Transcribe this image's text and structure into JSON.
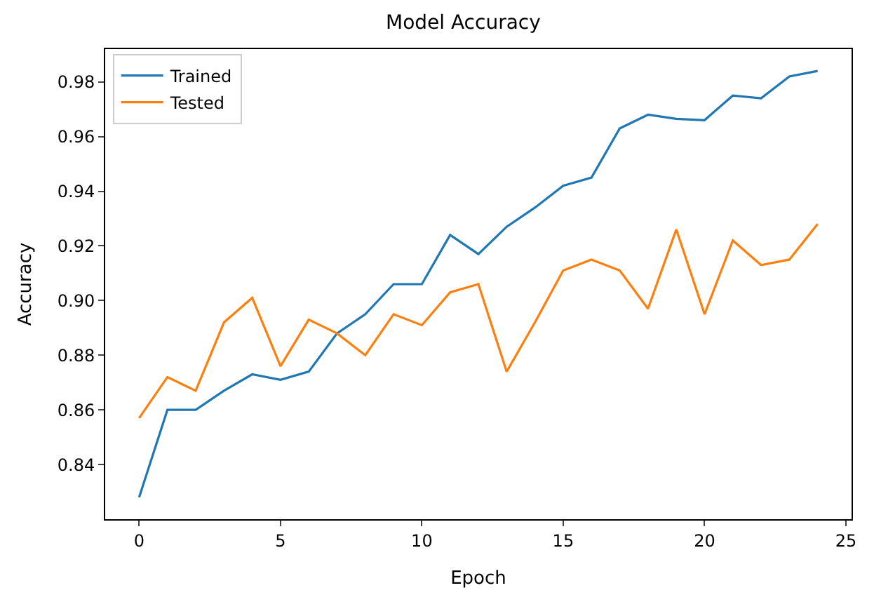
{
  "chart_data": {
    "type": "line",
    "title": "Model Accuracy",
    "xlabel": "Epoch",
    "ylabel": "Accuracy",
    "x": [
      0,
      1,
      2,
      3,
      4,
      5,
      6,
      7,
      8,
      9,
      10,
      11,
      12,
      13,
      14,
      15,
      16,
      17,
      18,
      19,
      20,
      21,
      22,
      23,
      24
    ],
    "series": [
      {
        "name": "Trained",
        "color": "#1f77b4",
        "values": [
          0.828,
          0.86,
          0.86,
          0.867,
          0.873,
          0.871,
          0.874,
          0.888,
          0.895,
          0.906,
          0.906,
          0.924,
          0.917,
          0.927,
          0.934,
          0.942,
          0.945,
          0.963,
          0.968,
          0.9665,
          0.966,
          0.975,
          0.974,
          0.982,
          0.984
        ]
      },
      {
        "name": "Tested",
        "color": "#ff7f0e",
        "values": [
          0.857,
          0.872,
          0.867,
          0.892,
          0.901,
          0.876,
          0.893,
          0.888,
          0.88,
          0.895,
          0.891,
          0.903,
          0.906,
          0.874,
          0.892,
          0.911,
          0.915,
          0.911,
          0.897,
          0.926,
          0.895,
          0.922,
          0.913,
          0.915,
          0.928
        ]
      }
    ],
    "xlim": [
      -1.2,
      25.2
    ],
    "xticks": [
      0,
      5,
      10,
      15,
      20,
      25
    ],
    "ylim": [
      0.82,
      0.992
    ],
    "yticks": [
      0.84,
      0.86,
      0.88,
      {
        "value": 0.9,
        "label": "0.90"
      },
      0.92,
      0.94,
      0.96,
      0.98
    ],
    "legend": "top left",
    "marker": "none",
    "line_style": "solid"
  }
}
